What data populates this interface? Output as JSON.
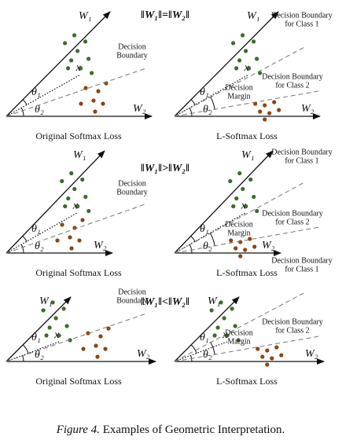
{
  "caption": {
    "figure": "Figure 4.",
    "text": "Examples of Geometric Interpretation."
  },
  "rows": [
    {
      "condition": "‖W₁‖=‖W₂‖",
      "left": {
        "w1": "W₁",
        "w2": "W₂",
        "theta1": "θ₁",
        "theta2": "θ₂",
        "x": "x",
        "boundary": [
          "Decision",
          "Boundary"
        ],
        "loss": "Original Softmax Loss"
      },
      "right": {
        "w1": "W₁",
        "w2": "W₂",
        "theta1": "θ₁",
        "theta2": "θ₂",
        "x": "x",
        "boundary1": [
          "Decision Boundary",
          "for Class 1"
        ],
        "boundary2": [
          "Decision Boundary",
          "for Class 2"
        ],
        "margin": [
          "Decision",
          "Margin"
        ],
        "loss": "L-Softmax Loss"
      }
    },
    {
      "condition": "‖W₁‖>‖W₂‖",
      "left": {
        "w1": "W₁",
        "w2": "W₂",
        "theta1": "θ₁",
        "theta2": "θ₂",
        "x": "x",
        "boundary": [
          "Decision",
          "Boundary"
        ],
        "loss": "Original Softmax Loss"
      },
      "right": {
        "w1": "W₁",
        "w2": "W₂",
        "theta1": "θ₁",
        "theta2": "θ₂",
        "x": "x",
        "boundary1": [
          "Decision Boundary",
          "for Class 1"
        ],
        "boundary2": [
          "Decision Boundary",
          "for Class 2"
        ],
        "margin": [
          "Decision",
          "Margin"
        ],
        "loss": "L-Softmax Loss"
      }
    },
    {
      "condition": "‖W₁‖<‖W₂‖",
      "left": {
        "w1": "W₁",
        "w2": "W₂",
        "theta1": "θ₁",
        "theta2": "θ₂",
        "x": "x",
        "boundary": [
          "Decision",
          "Boundary"
        ],
        "loss": "Original Softmax Loss"
      },
      "right": {
        "w1": "W₁",
        "w2": "W₂",
        "theta1": "θ₁",
        "theta2": "θ₂",
        "x": "x",
        "boundary1": [
          "Decision Boundary",
          "for Class 1"
        ],
        "boundary2": [
          "Decision Boundary",
          "for Class 2"
        ],
        "margin": [
          "Decision",
          "Margin"
        ],
        "loss": "L-Softmax Loss"
      }
    }
  ]
}
